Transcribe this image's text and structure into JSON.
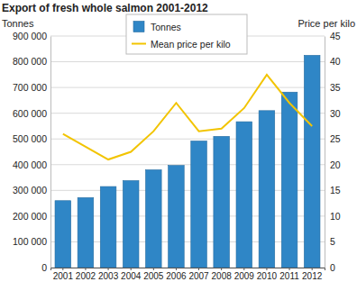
{
  "chart_data": {
    "type": "bar",
    "title": "Export of fresh whole salmon 2001-2012",
    "y_label": "Tonnes",
    "y2_label": "Price per kilo",
    "categories": [
      "2001",
      "2002",
      "2003",
      "2004",
      "2005",
      "2006",
      "2007",
      "2008",
      "2009",
      "2010",
      "2011",
      "2012"
    ],
    "series": [
      {
        "name": "Tonnes",
        "type": "bar",
        "color": "#2f86c6",
        "values": [
          260000,
          272000,
          315000,
          338000,
          380000,
          397000,
          492000,
          510000,
          567000,
          610000,
          682000,
          825000
        ]
      },
      {
        "name": "Mean price per kilo",
        "type": "line",
        "color": "#f2c400",
        "axis": "y2",
        "values": [
          26,
          23.5,
          21,
          22.5,
          26.5,
          32,
          26.5,
          27,
          31,
          37.5,
          32,
          27.5
        ]
      }
    ],
    "ylim": [
      0,
      900000
    ],
    "yticks": [
      0,
      {
        "value": 100000,
        "label": "100 000"
      },
      {
        "value": 200000,
        "label": "200 000"
      },
      {
        "value": 300000,
        "label": "300 000"
      },
      {
        "value": 400000,
        "label": "400 000"
      },
      {
        "value": 500000,
        "label": "500 000"
      },
      {
        "value": 600000,
        "label": "600 000"
      },
      {
        "value": 700000,
        "label": "700 000"
      },
      {
        "value": 800000,
        "label": "800 000"
      },
      {
        "value": 900000,
        "label": "900 000"
      }
    ],
    "y2lim": [
      0,
      45
    ],
    "y2ticks": [
      0,
      5,
      10,
      15,
      20,
      25,
      30,
      35,
      40,
      45
    ],
    "grid": true,
    "legend": "top"
  }
}
